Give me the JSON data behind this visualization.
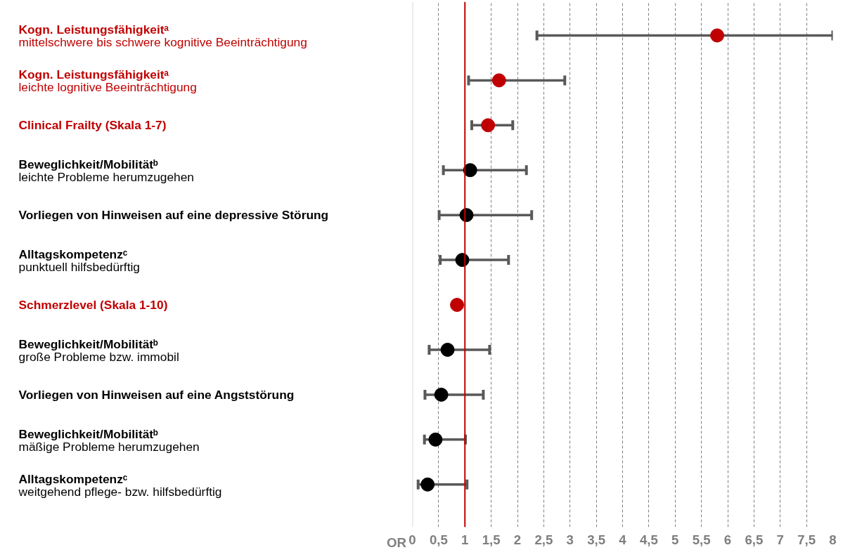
{
  "chart_data": {
    "type": "scatter",
    "orientation": "horizontal",
    "categories": [
      "Kogn. Leistungsfähigkeitᵃ\nmittelschwere bis schwere kognitive Beeinträchtigung",
      "Kogn. Leistungsfähigkeitᵃ\nleichte lognitive Beeinträchtigung",
      "Clinical Frailty (Skala 1-7)",
      "Beweglichkeit/Mobilitätᵇ\nleichte Probleme herumzugehen",
      "Vorliegen von Hinweisen auf eine depressive Störung",
      "Alltagskompetenzᶜ\npunktuell hilfsbedürftig",
      "Schmerzlevel (Skala 1-10)",
      "Beweglichkeit/Mobilitätᵇ\ngroße Probleme bzw. immobil",
      "Vorliegen von Hinweisen auf eine Angststörung",
      "Beweglichkeit/Mobilitätᵇ\nmäßige Probleme herumzugehen",
      "Alltagskompetenzᶜ\nweitgehend pflege- bzw. hilfsbedürftig"
    ],
    "values": [
      5.8,
      1.65,
      1.44,
      1.1,
      1.03,
      0.95,
      0.85,
      0.67,
      0.55,
      0.44,
      0.29
    ],
    "errors": [
      [
        2.37,
        8.0
      ],
      [
        1.07,
        2.9
      ],
      [
        1.13,
        1.91
      ],
      [
        0.59,
        2.17
      ],
      [
        0.51,
        2.27
      ],
      [
        0.53,
        1.83
      ],
      null,
      [
        0.32,
        1.47
      ],
      [
        0.24,
        1.35
      ],
      [
        0.23,
        1.01
      ],
      [
        0.11,
        1.04
      ]
    ],
    "colors": [
      "#c00000",
      "#c00000",
      "#c00000",
      "#000000",
      "#000000",
      "#000000",
      "#c00000",
      "#000000",
      "#000000",
      "#000000",
      "#000000"
    ],
    "xlabel": "OR",
    "xlim": [
      0,
      8
    ],
    "xticks": [
      0,
      {
        "value": 0.5,
        "label": "0,5"
      },
      1,
      {
        "value": 1.5,
        "label": "1,5"
      },
      2,
      {
        "value": 2.5,
        "label": "2,5"
      },
      3,
      {
        "value": 3.5,
        "label": "3,5"
      },
      4,
      {
        "value": 4.5,
        "label": "4,5"
      },
      5,
      {
        "value": 5.5,
        "label": "5,5"
      },
      6,
      {
        "value": 6.5,
        "label": "6,5"
      },
      7,
      {
        "value": 7.5,
        "label": "7,5"
      },
      8
    ],
    "ref_lines": [
      {
        "axis": "x",
        "value": 1,
        "color": "#c00000"
      }
    ],
    "grid": "x",
    "marker": "circle"
  }
}
